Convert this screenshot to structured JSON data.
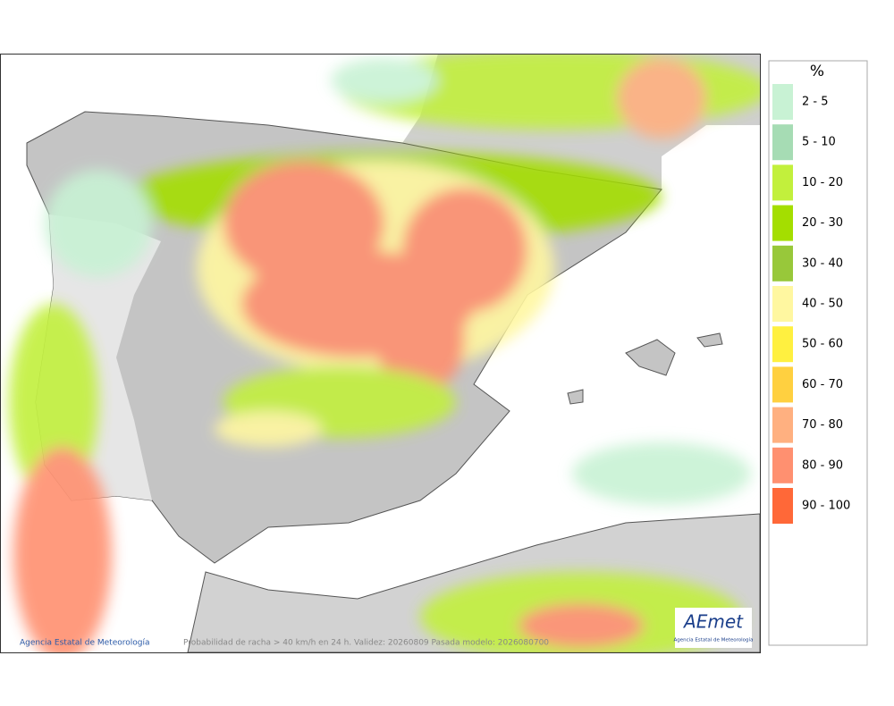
{
  "legend": {
    "title": "%",
    "items": [
      {
        "label": "2 - 5",
        "color": "#c8f2d4"
      },
      {
        "label": "5 - 10",
        "color": "#a6dcb4"
      },
      {
        "label": "10 - 20",
        "color": "#c2f03c"
      },
      {
        "label": "20 - 30",
        "color": "#a4de00"
      },
      {
        "label": "30 - 40",
        "color": "#98c83a"
      },
      {
        "label": "40 - 50",
        "color": "#fff7a0"
      },
      {
        "label": "50 - 60",
        "color": "#fff040"
      },
      {
        "label": "60 - 70",
        "color": "#ffd040"
      },
      {
        "label": "70 - 80",
        "color": "#ffb080"
      },
      {
        "label": "80 - 90",
        "color": "#ff9070"
      },
      {
        "label": "90 - 100",
        "color": "#ff6838"
      }
    ]
  },
  "footer": {
    "credit": "Agencia Estatal de Meteorología",
    "caption": "Probabilidad de racha > 40 km/h en 24 h. Validez: 20260809 Pasada modelo: 2026080700"
  },
  "logo": {
    "name": "AEmet",
    "subtitle": "Agencia Estatal de Meteorología"
  }
}
